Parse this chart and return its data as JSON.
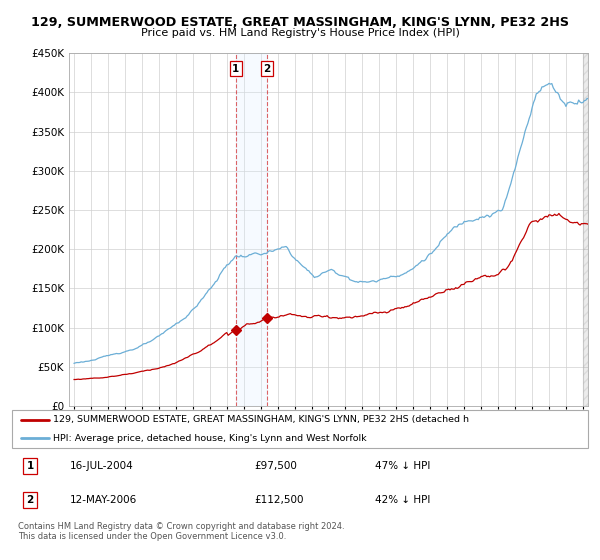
{
  "title": "129, SUMMERWOOD ESTATE, GREAT MASSINGHAM, KING'S LYNN, PE32 2HS",
  "subtitle": "Price paid vs. HM Land Registry's House Price Index (HPI)",
  "legend_line1": "129, SUMMERWOOD ESTATE, GREAT MASSINGHAM, KING'S LYNN, PE32 2HS (detached h",
  "legend_line2": "HPI: Average price, detached house, King's Lynn and West Norfolk",
  "footer": "Contains HM Land Registry data © Crown copyright and database right 2024.\nThis data is licensed under the Open Government Licence v3.0.",
  "sale1_date": "16-JUL-2004",
  "sale1_price": "£97,500",
  "sale1_hpi": "47% ↓ HPI",
  "sale2_date": "12-MAY-2006",
  "sale2_price": "£112,500",
  "sale2_hpi": "42% ↓ HPI",
  "sale1_x": 2004.54,
  "sale1_y": 97500,
  "sale2_x": 2006.37,
  "sale2_y": 112500,
  "hpi_color": "#6BAED6",
  "price_color": "#C00000",
  "highlight_color": "#DDEEFF",
  "ylim": [
    0,
    450000
  ],
  "xlim_start": 1994.7,
  "xlim_end": 2025.3,
  "yticks": [
    0,
    50000,
    100000,
    150000,
    200000,
    250000,
    300000,
    350000,
    400000,
    450000
  ],
  "xticks": [
    1995,
    1996,
    1997,
    1998,
    1999,
    2000,
    2001,
    2002,
    2003,
    2004,
    2005,
    2006,
    2007,
    2008,
    2009,
    2010,
    2011,
    2012,
    2013,
    2014,
    2015,
    2016,
    2017,
    2018,
    2019,
    2020,
    2021,
    2022,
    2023,
    2024,
    2025
  ]
}
